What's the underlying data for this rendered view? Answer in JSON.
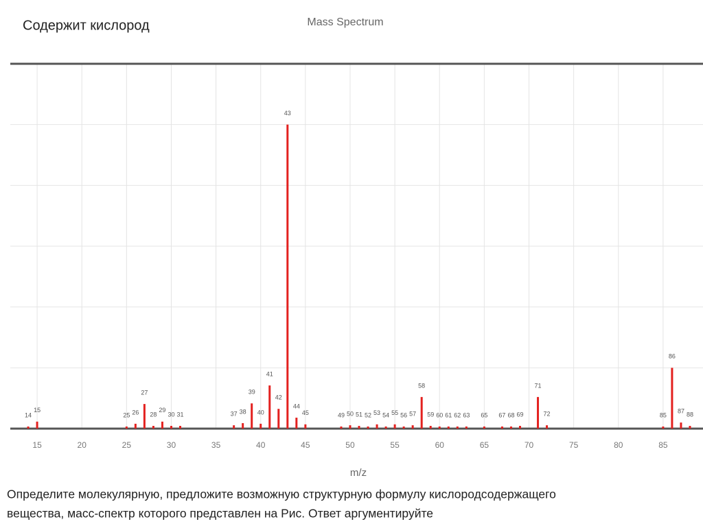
{
  "slide": {
    "heading": "Содержит кислород",
    "question": [
      "Определите молекулярную, предложите возможную структурную формулу кислородсодержащего",
      "вещества, масс-спектр которого представлен на Рис. Ответ аргументируйте"
    ]
  },
  "chart_data": {
    "type": "bar",
    "title": "Mass Spectrum",
    "x_label": "m/z",
    "color": "#e3211f",
    "grid": true,
    "x": [
      14,
      15,
      25,
      26,
      27,
      28,
      29,
      30,
      31,
      37,
      38,
      39,
      40,
      41,
      42,
      43,
      44,
      45,
      49,
      50,
      51,
      52,
      53,
      54,
      55,
      56,
      57,
      58,
      59,
      60,
      61,
      62,
      63,
      65,
      67,
      68,
      69,
      71,
      72,
      85,
      86,
      87,
      88
    ],
    "values": [
      0.7,
      2.3,
      0.7,
      1.6,
      8.1,
      0.9,
      2.3,
      0.9,
      0.9,
      1.1,
      1.8,
      8.3,
      1.6,
      14.2,
      6.5,
      100,
      3.6,
      1.4,
      0.7,
      1.1,
      0.9,
      0.7,
      1.4,
      0.7,
      1.4,
      0.7,
      1.1,
      10.4,
      0.9,
      0.7,
      0.7,
      0.7,
      0.7,
      0.7,
      0.7,
      0.7,
      0.9,
      10.4,
      1.1,
      0.7,
      20,
      2,
      0.9
    ],
    "xlim": [
      12,
      89
    ],
    "xticks": [
      15,
      20,
      25,
      30,
      35,
      40,
      45,
      50,
      55,
      60,
      65,
      70,
      75,
      80,
      85
    ],
    "ylim": [
      0,
      120
    ],
    "yticks": [
      0,
      20,
      40,
      60,
      80,
      100,
      120
    ]
  }
}
